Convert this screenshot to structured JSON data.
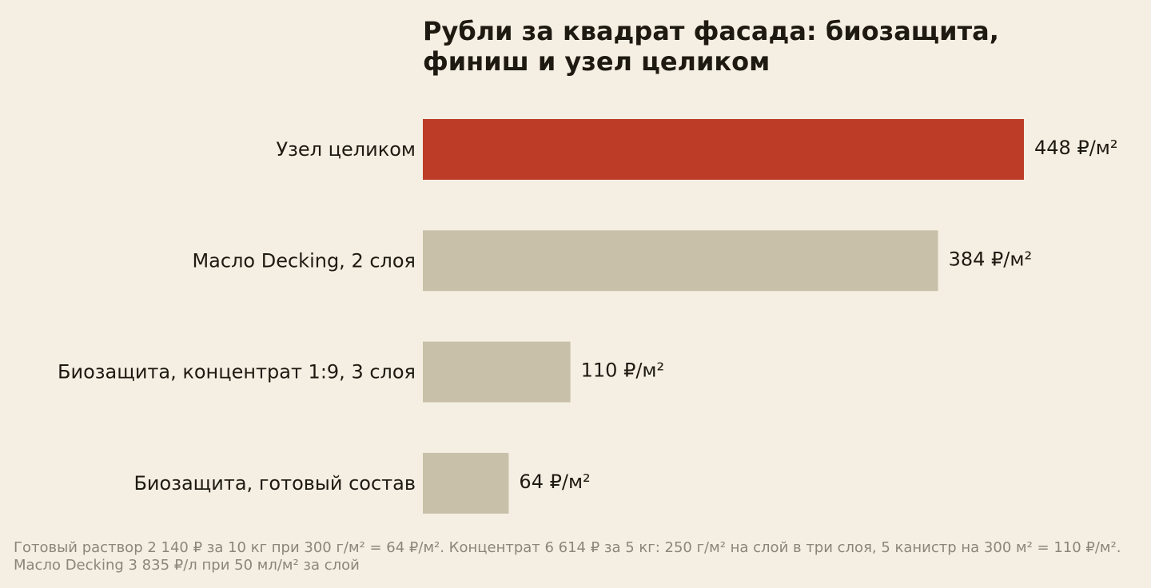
{
  "chart_data": {
    "type": "bar",
    "orientation": "horizontal",
    "title_lines": [
      "Рубли за квадрат фасада: биозащита,",
      "финиш и узел целиком"
    ],
    "categories": [
      "Узел целиком",
      "Масло Decking, 2 слоя",
      "Биозащита, концентрат 1:9, 3 слоя",
      "Биозащита, готовый состав"
    ],
    "values": [
      448,
      384,
      110,
      64
    ],
    "value_labels": [
      "448 ₽/м²",
      "384 ₽/м²",
      "110 ₽/м²",
      "64 ₽/м²"
    ],
    "colors": [
      "#bc3c28",
      "#c9c0a9",
      "#c9c0a9",
      "#c9c0a9"
    ],
    "xlim": [
      0,
      448
    ],
    "grid": false,
    "legend": "none"
  },
  "footnote": "Готовый раствор 2 140 ₽ за 10 кг при 300 г/м² = 64 ₽/м². Концентрат 6 614 ₽ за 5 кг: 250 г/м² на слой в три слоя, 5 канистр на 300 м² = 110 ₽/м². Масло Decking 3 835 ₽/л при 50 мл/м² за слой"
}
